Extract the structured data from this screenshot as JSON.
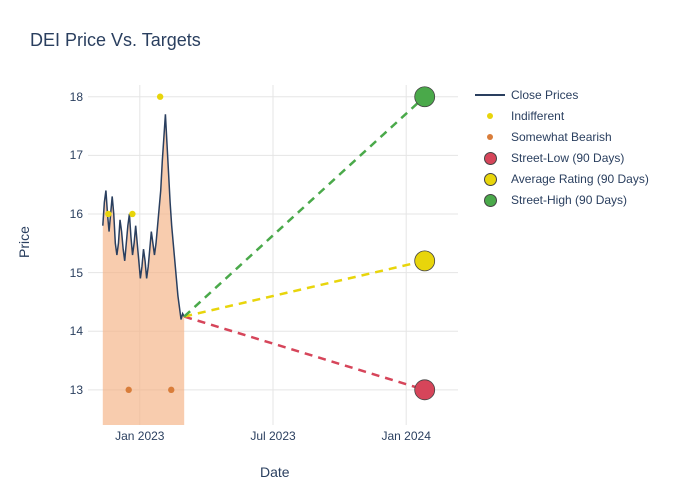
{
  "title": "DEI Price Vs. Targets",
  "axes": {
    "x_label": "Date",
    "y_label": "Price",
    "ylim": [
      12.4,
      18.2
    ],
    "y_ticks": [
      13,
      14,
      15,
      16,
      17,
      18
    ],
    "x_ticks": [
      {
        "label": "Jan 2023",
        "pos": 0.14
      },
      {
        "label": "Jul 2023",
        "pos": 0.5
      },
      {
        "label": "Jan 2024",
        "pos": 0.86
      }
    ],
    "grid_color": "#e5e5e5"
  },
  "colors": {
    "close_line": "#2a3f5f",
    "area_fill": "#f4b183",
    "area_opacity": 0.65,
    "indifferent": "#e8d50b",
    "bearish": "#d97d3a",
    "street_low": "#d6455a",
    "avg_rating": "#e8d50b",
    "street_high": "#4aa94a",
    "text": "#2a3f5f",
    "bg": "#ffffff"
  },
  "close_prices": {
    "x_start": 0.04,
    "x_end": 0.26,
    "values": [
      15.8,
      16.2,
      16.4,
      16.0,
      15.7,
      16.0,
      16.3,
      16.0,
      15.5,
      15.3,
      15.5,
      15.9,
      15.7,
      15.4,
      15.2,
      15.5,
      15.8,
      16.0,
      15.6,
      15.3,
      15.5,
      15.8,
      15.5,
      15.2,
      14.9,
      15.1,
      15.4,
      15.2,
      14.9,
      15.1,
      15.4,
      15.7,
      15.5,
      15.3,
      15.5,
      15.8,
      16.1,
      16.4,
      16.9,
      17.3,
      17.7,
      17.2,
      16.7,
      16.2,
      15.8,
      15.5,
      15.2,
      14.9,
      14.6,
      14.4,
      14.2,
      14.3,
      14.25
    ]
  },
  "indifferent_points": [
    {
      "x": 0.055,
      "y": 16.0
    },
    {
      "x": 0.12,
      "y": 16.0
    },
    {
      "x": 0.195,
      "y": 18.0
    }
  ],
  "bearish_points": [
    {
      "x": 0.11,
      "y": 13.0
    },
    {
      "x": 0.225,
      "y": 13.0
    }
  ],
  "projections": {
    "start_x": 0.26,
    "start_y": 14.25,
    "end_x": 0.91,
    "low": 13.0,
    "avg": 15.2,
    "high": 18.0,
    "marker_radius": 10
  },
  "legend": [
    {
      "label": "Close Prices",
      "type": "line",
      "color": "#2a3f5f"
    },
    {
      "label": "Indifferent",
      "type": "dot",
      "color": "#e8d50b",
      "size": 6
    },
    {
      "label": "Somewhat Bearish",
      "type": "dot",
      "color": "#d97d3a",
      "size": 6
    },
    {
      "label": "Street-Low (90 Days)",
      "type": "dot",
      "color": "#d6455a",
      "size": 13
    },
    {
      "label": "Average Rating (90 Days)",
      "type": "dot",
      "color": "#e8d50b",
      "size": 13
    },
    {
      "label": "Street-High (90 Days)",
      "type": "dot",
      "color": "#4aa94a",
      "size": 13
    }
  ],
  "fonts": {
    "title_size": 18,
    "axis_label_size": 14,
    "tick_size": 12,
    "legend_size": 12
  }
}
